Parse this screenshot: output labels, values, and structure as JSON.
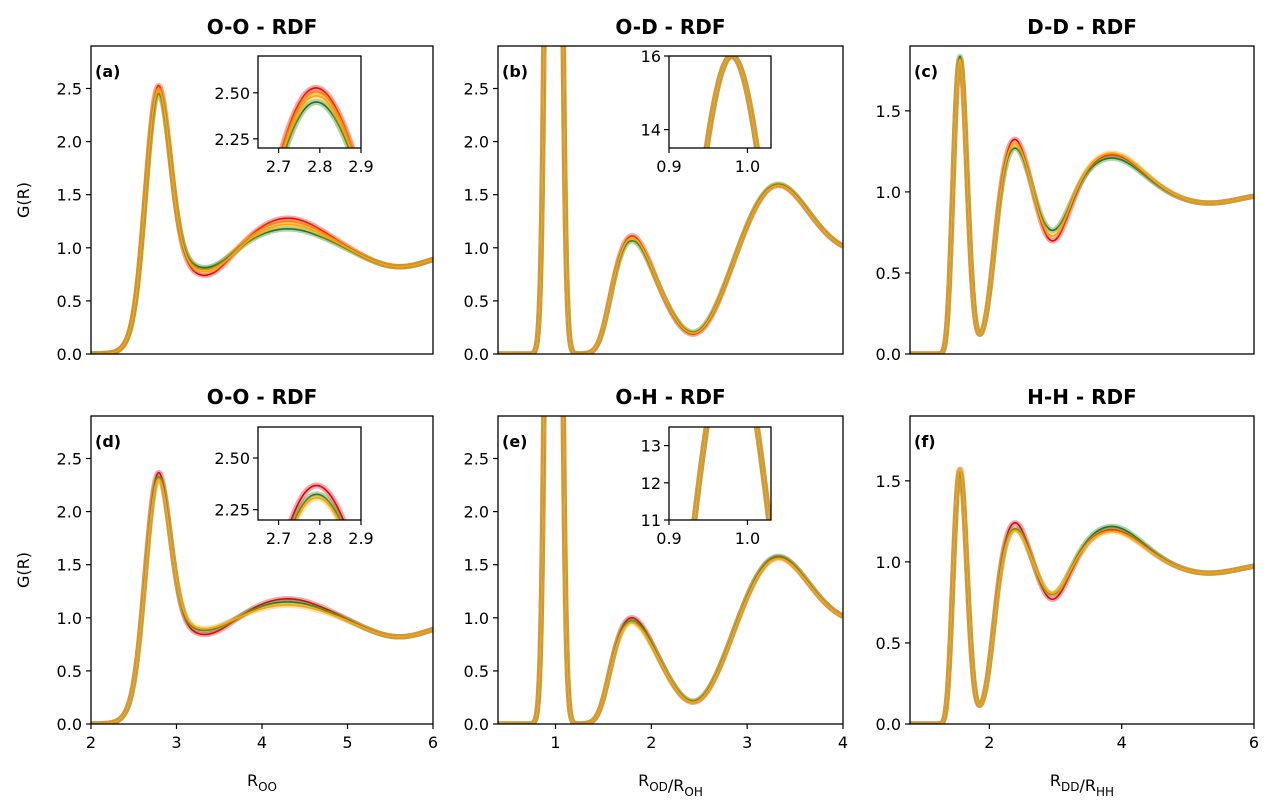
{
  "chart_data": [
    {
      "id": "a",
      "type": "line",
      "title": "O-O - RDF",
      "panel_label": "(a)",
      "ylabel": "G(R)",
      "xlabel": "",
      "xlim": [
        2,
        6
      ],
      "ylim": [
        0,
        2.9
      ],
      "xticks": [],
      "yticks": [
        0.0,
        0.5,
        1.0,
        1.5,
        2.0,
        2.5
      ],
      "curve_kind": "OO",
      "series": [
        {
          "color": "#e8000b",
          "values": {
            "peak1": 2.65,
            "min1": 0.72,
            "peak2": 1.28
          }
        },
        {
          "color": "#ff7f0e",
          "values": {
            "peak1": 2.62,
            "min1": 0.78,
            "peak2": 1.25
          }
        },
        {
          "color": "#1a7a1a",
          "values": {
            "peak1": 2.56,
            "min1": 0.8,
            "peak2": 1.18
          }
        },
        {
          "color": "#ffa500",
          "values": {
            "peak1": 2.6,
            "min1": 0.76,
            "peak2": 1.22
          }
        }
      ],
      "inset": {
        "xlim": [
          2.65,
          2.9
        ],
        "ylim": [
          2.2,
          2.7
        ],
        "xticks": [
          2.7,
          2.8,
          2.9
        ],
        "yticks": [
          2.25,
          2.5
        ]
      }
    },
    {
      "id": "b",
      "type": "line",
      "title": "O-D - RDF",
      "panel_label": "(b)",
      "ylabel": "",
      "xlabel": "",
      "xlim": [
        0.4,
        4
      ],
      "ylim": [
        0,
        2.9
      ],
      "xticks": [],
      "yticks": [
        0.0,
        0.5,
        1.0,
        1.5,
        2.0,
        2.5
      ],
      "curve_kind": "OH",
      "series": [
        {
          "color": "#e8000b",
          "values": {
            "peak2": 1.27,
            "min2": 0.17,
            "peak3": 1.61
          }
        },
        {
          "color": "#1a7a1a",
          "values": {
            "peak2": 1.22,
            "min2": 0.19,
            "peak3": 1.62
          }
        },
        {
          "color": "#ffa500",
          "values": {
            "peak2": 1.25,
            "min2": 0.18,
            "peak3": 1.61
          }
        }
      ],
      "inset": {
        "xlim": [
          0.9,
          1.03
        ],
        "ylim": [
          13.5,
          16
        ],
        "xticks": [
          0.9,
          1.0
        ],
        "yticks": [
          14,
          16
        ]
      }
    },
    {
      "id": "c",
      "type": "line",
      "title": "D-D - RDF",
      "panel_label": "(c)",
      "ylabel": "",
      "xlabel": "",
      "xlim": [
        0.8,
        6
      ],
      "ylim": [
        0,
        1.9
      ],
      "xticks": [],
      "yticks": [
        0.0,
        0.5,
        1.0,
        1.5
      ],
      "curve_kind": "HH",
      "series": [
        {
          "color": "#e8000b",
          "values": {
            "peak1": 1.85,
            "peak2": 1.37,
            "min2": 0.65,
            "peak3": 1.23
          }
        },
        {
          "color": "#1a7a1a",
          "values": {
            "peak1": 1.87,
            "peak2": 1.31,
            "min2": 0.72,
            "peak3": 1.21
          }
        },
        {
          "color": "#ffa500",
          "values": {
            "peak1": 1.85,
            "peak2": 1.34,
            "min2": 0.68,
            "peak3": 1.24
          }
        }
      ]
    },
    {
      "id": "d",
      "type": "line",
      "title": "O-O - RDF",
      "panel_label": "(d)",
      "ylabel": "G(R)",
      "xlabel": "R_OO",
      "xlim": [
        2,
        6
      ],
      "ylim": [
        0,
        2.9
      ],
      "xticks": [
        2,
        3,
        4,
        5,
        6
      ],
      "yticks": [
        0.0,
        0.5,
        1.0,
        1.5,
        2.0,
        2.5
      ],
      "curve_kind": "OO",
      "series": [
        {
          "color": "#e8000b",
          "values": {
            "peak1": 2.47,
            "min1": 0.83,
            "peak2": 1.18
          }
        },
        {
          "color": "#1a7a1a",
          "values": {
            "peak1": 2.42,
            "min1": 0.87,
            "peak2": 1.15
          }
        },
        {
          "color": "#ffa500",
          "values": {
            "peak1": 2.4,
            "min1": 0.89,
            "peak2": 1.12
          }
        }
      ],
      "inset": {
        "xlim": [
          2.65,
          2.9
        ],
        "ylim": [
          2.2,
          2.65
        ],
        "xticks": [
          2.7,
          2.8,
          2.9
        ],
        "yticks": [
          2.25,
          2.5
        ]
      }
    },
    {
      "id": "e",
      "type": "line",
      "title": "O-H - RDF",
      "panel_label": "(e)",
      "ylabel": "",
      "xlabel": "R_OD/R_OH",
      "xlim": [
        0.4,
        4
      ],
      "ylim": [
        0,
        2.9
      ],
      "xticks": [
        1,
        2,
        3,
        4
      ],
      "yticks": [
        0.0,
        0.5,
        1.0,
        1.5,
        2.0,
        2.5
      ],
      "curve_kind": "OH",
      "series": [
        {
          "color": "#e8000b",
          "values": {
            "peak2": 1.15,
            "min2": 0.19,
            "peak3": 1.59
          }
        },
        {
          "color": "#1a7a1a",
          "values": {
            "peak2": 1.12,
            "min2": 0.2,
            "peak3": 1.6
          }
        },
        {
          "color": "#ffa500",
          "values": {
            "peak2": 1.1,
            "min2": 0.19,
            "peak3": 1.58
          }
        }
      ],
      "inset": {
        "xlim": [
          0.9,
          1.03
        ],
        "ylim": [
          11,
          13.5
        ],
        "xticks": [
          0.9,
          1.0
        ],
        "yticks": [
          11,
          12,
          13
        ]
      }
    },
    {
      "id": "f",
      "type": "line",
      "title": "H-H - RDF",
      "panel_label": "(f)",
      "ylabel": "",
      "xlabel": "R_DD/R_HH",
      "xlim": [
        0.8,
        6
      ],
      "ylim": [
        0,
        1.9
      ],
      "xticks": [
        2,
        4,
        6
      ],
      "yticks": [
        0.0,
        0.5,
        1.0,
        1.5
      ],
      "curve_kind": "HH",
      "series": [
        {
          "color": "#e8000b",
          "values": {
            "peak1": 1.6,
            "peak2": 1.28,
            "min2": 0.73,
            "peak3": 1.2
          }
        },
        {
          "color": "#1a7a1a",
          "values": {
            "peak1": 1.58,
            "peak2": 1.24,
            "min2": 0.76,
            "peak3": 1.22
          }
        },
        {
          "color": "#ffa500",
          "values": {
            "peak1": 1.6,
            "peak2": 1.23,
            "min2": 0.77,
            "peak3": 1.19
          }
        }
      ]
    }
  ]
}
